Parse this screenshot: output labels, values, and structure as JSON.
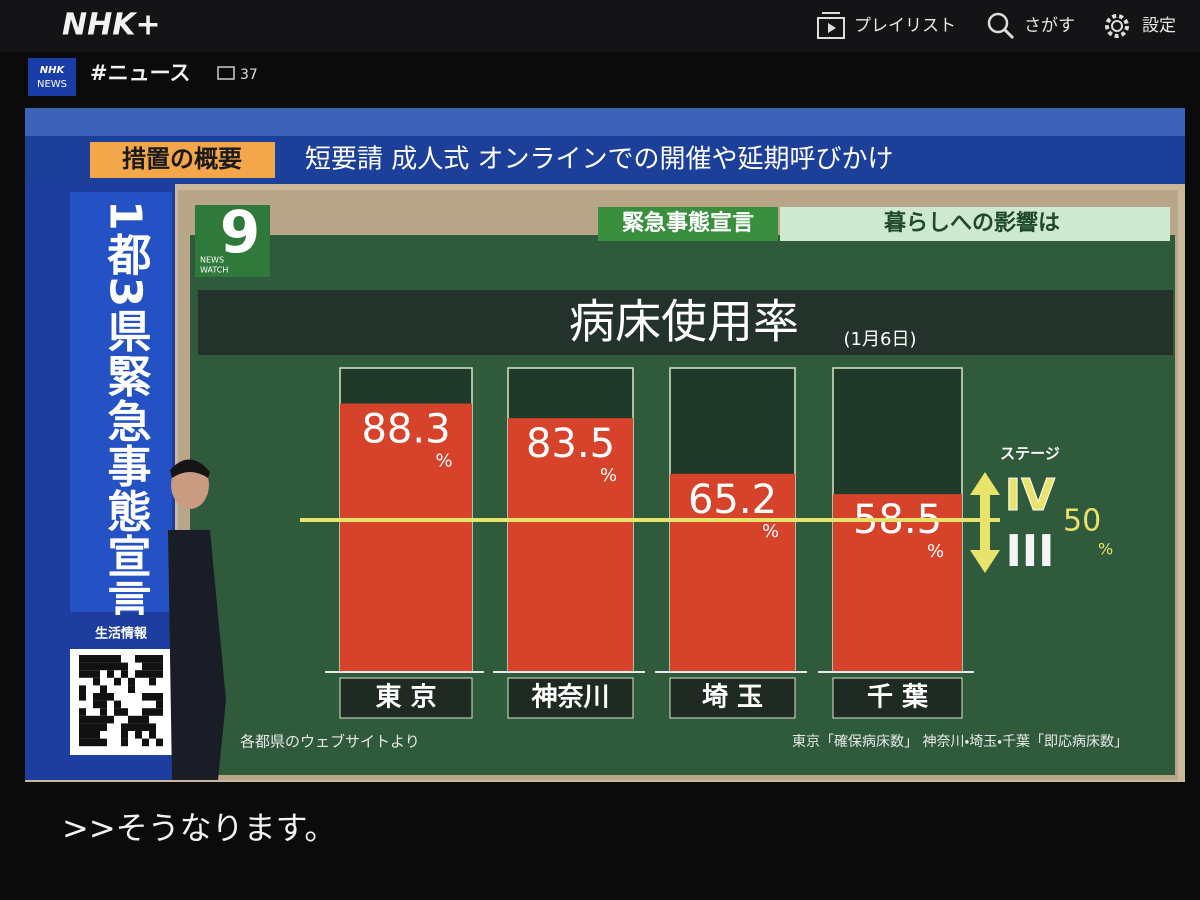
{
  "header": {
    "logo": "NHK+",
    "nav": [
      {
        "label": "プレイリスト"
      },
      {
        "label": "さがす"
      },
      {
        "label": "設定"
      }
    ]
  },
  "channel": {
    "badge": [
      "NHK",
      "NEWS"
    ],
    "title": "#ニュース",
    "comments": 37
  },
  "broadcast": {
    "ticker_label": "措置の概要",
    "ticker_text": "短要請  成人式  オンラインでの開催や延期呼びかけ",
    "side_banner": "1都3県緊急事態宣言",
    "qr_label": "生活情報",
    "program_logo": {
      "number": "9",
      "lines": [
        "NEWS",
        "WATCH"
      ]
    },
    "topic_tag": "緊急事態宣言",
    "topic": "暮らしへの影響は",
    "caption": ">>そうなります。"
  },
  "chart_data": {
    "type": "bar",
    "title": "病床使用率",
    "subtitle": "(1月6日)",
    "categories": [
      "東 京",
      "神奈川",
      "埼 玉",
      "千 葉"
    ],
    "values": [
      88.3,
      83.5,
      65.2,
      58.5
    ],
    "unit": "%",
    "color": "#d6432a",
    "ylim": [
      0,
      100
    ],
    "reference": {
      "value": 50,
      "stage_label": "ステージ",
      "upper": "IV",
      "lower": "III",
      "color": "#e8e36a"
    },
    "source_left": "各都県のウェブサイトより",
    "source_right": "東京「確保病床数」 神奈川・埼玉・千葉「即応病床数」"
  }
}
